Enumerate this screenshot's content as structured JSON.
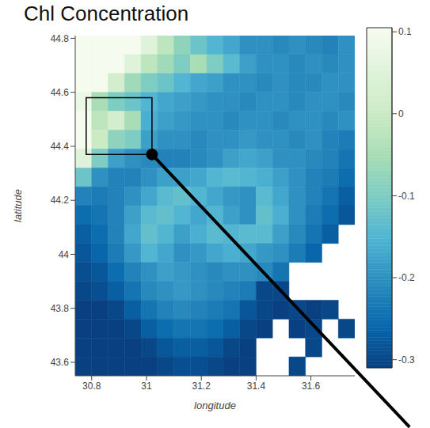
{
  "chart_data": {
    "type": "heatmap",
    "title": "Chl Concentration",
    "xlabel": "longitude",
    "ylabel": "latitude",
    "xlim": [
      30.74,
      31.76
    ],
    "ylim": [
      43.55,
      44.81
    ],
    "xticks": [
      30.8,
      31,
      31.2,
      31.4,
      31.6
    ],
    "yticks": [
      43.6,
      43.8,
      44,
      44.2,
      44.4,
      44.6,
      44.8
    ],
    "heatmap": {
      "x": [
        30.77,
        30.83,
        30.89,
        30.95,
        31.01,
        31.07,
        31.13,
        31.19,
        31.25,
        31.31,
        31.37,
        31.43,
        31.49,
        31.55,
        31.61,
        31.67,
        31.73
      ],
      "y": [
        44.775,
        44.705,
        44.635,
        44.565,
        44.495,
        44.425,
        44.355,
        44.285,
        44.215,
        44.145,
        44.075,
        44.005,
        43.935,
        43.865,
        43.795,
        43.725,
        43.655,
        43.585
      ],
      "z": [
        [
          0.1,
          0.1,
          0.1,
          0.1,
          0.05,
          -0.02,
          -0.08,
          -0.12,
          -0.15,
          -0.17,
          -0.2,
          -0.2,
          -0.21,
          -0.2,
          -0.21,
          -0.22,
          -0.2
        ],
        [
          0.1,
          0.1,
          0.1,
          0.05,
          -0.02,
          -0.06,
          -0.1,
          -0.05,
          -0.1,
          -0.14,
          -0.18,
          -0.2,
          -0.2,
          -0.21,
          -0.2,
          -0.21,
          -0.2
        ],
        [
          0.1,
          0.1,
          0.02,
          -0.06,
          -0.1,
          -0.12,
          -0.15,
          -0.17,
          -0.18,
          -0.2,
          -0.2,
          -0.21,
          -0.2,
          -0.21,
          -0.21,
          -0.2,
          -0.2
        ],
        [
          0.08,
          -0.05,
          -0.1,
          -0.12,
          -0.15,
          -0.17,
          -0.18,
          -0.19,
          -0.2,
          -0.2,
          -0.21,
          -0.2,
          -0.2,
          -0.21,
          -0.2,
          -0.2,
          -0.21
        ],
        [
          0.1,
          -0.02,
          0.02,
          -0.05,
          -0.16,
          -0.18,
          -0.19,
          -0.2,
          -0.2,
          -0.21,
          -0.2,
          -0.2,
          -0.21,
          -0.2,
          -0.2,
          -0.21,
          -0.2
        ],
        [
          0.1,
          0.0,
          -0.08,
          -0.1,
          -0.18,
          -0.2,
          -0.2,
          -0.21,
          -0.2,
          -0.2,
          -0.19,
          -0.2,
          -0.2,
          -0.21,
          -0.2,
          -0.22,
          -0.23
        ],
        [
          0.05,
          -0.1,
          -0.18,
          -0.2,
          -0.21,
          -0.22,
          -0.22,
          -0.21,
          -0.2,
          -0.18,
          -0.17,
          -0.18,
          -0.2,
          -0.2,
          -0.21,
          -0.22,
          -0.24
        ],
        [
          -0.12,
          -0.2,
          -0.22,
          -0.22,
          -0.2,
          -0.18,
          -0.18,
          -0.17,
          -0.15,
          -0.14,
          -0.15,
          -0.16,
          -0.18,
          -0.2,
          -0.22,
          -0.23,
          -0.25
        ],
        [
          -0.22,
          -0.23,
          -0.22,
          -0.2,
          -0.17,
          -0.14,
          -0.13,
          -0.15,
          -0.17,
          -0.19,
          -0.2,
          -0.14,
          -0.17,
          -0.2,
          -0.22,
          -0.24,
          -0.27
        ],
        [
          -0.25,
          -0.24,
          -0.22,
          -0.18,
          -0.14,
          -0.13,
          -0.15,
          -0.17,
          -0.15,
          -0.18,
          -0.2,
          -0.13,
          -0.16,
          -0.2,
          -0.23,
          -0.25,
          -0.28
        ],
        [
          -0.27,
          -0.25,
          -0.22,
          -0.17,
          -0.13,
          -0.15,
          -0.18,
          -0.16,
          -0.14,
          -0.15,
          -0.14,
          -0.14,
          -0.18,
          -0.21,
          -0.24,
          -0.27,
          null
        ],
        [
          -0.28,
          -0.26,
          -0.23,
          -0.19,
          -0.15,
          -0.17,
          -0.2,
          -0.19,
          -0.17,
          -0.16,
          -0.17,
          -0.19,
          -0.2,
          -0.23,
          -0.26,
          null,
          null
        ],
        [
          -0.29,
          -0.28,
          -0.25,
          -0.22,
          -0.2,
          -0.18,
          -0.19,
          -0.2,
          -0.21,
          -0.2,
          -0.2,
          -0.21,
          -0.24,
          null,
          null,
          null,
          null
        ],
        [
          -0.3,
          -0.29,
          -0.27,
          -0.24,
          -0.21,
          -0.2,
          -0.19,
          -0.2,
          -0.21,
          -0.22,
          -0.23,
          -0.3,
          -0.3,
          null,
          null,
          null,
          null
        ],
        [
          -0.31,
          -0.31,
          -0.3,
          -0.27,
          -0.24,
          -0.22,
          -0.21,
          -0.22,
          -0.23,
          -0.24,
          -0.28,
          -0.3,
          -0.31,
          -0.3,
          -0.31,
          -0.3,
          null
        ],
        [
          -0.31,
          -0.31,
          -0.31,
          -0.3,
          -0.27,
          -0.25,
          -0.24,
          -0.24,
          -0.25,
          -0.27,
          -0.3,
          -0.31,
          null,
          -0.31,
          -0.3,
          null,
          -0.3
        ],
        [
          -0.31,
          -0.31,
          -0.31,
          -0.31,
          -0.3,
          -0.28,
          -0.27,
          -0.27,
          -0.28,
          -0.3,
          -0.31,
          null,
          null,
          null,
          -0.3,
          null,
          null
        ],
        [
          -0.31,
          -0.31,
          -0.31,
          -0.31,
          -0.31,
          -0.3,
          -0.29,
          -0.29,
          -0.3,
          -0.31,
          -0.31,
          null,
          null,
          -0.3,
          null,
          null,
          null
        ]
      ]
    },
    "colorbar": {
      "range": [
        -0.31,
        0.105
      ],
      "ticks": [
        0.1,
        0,
        -0.1,
        -0.2,
        -0.3
      ]
    },
    "box": {
      "x": [
        30.78,
        31.02
      ],
      "y": [
        44.37,
        44.58
      ]
    },
    "pointer": {
      "x": [
        31.02,
        31.96
      ],
      "y": [
        44.37,
        43.36
      ]
    }
  }
}
